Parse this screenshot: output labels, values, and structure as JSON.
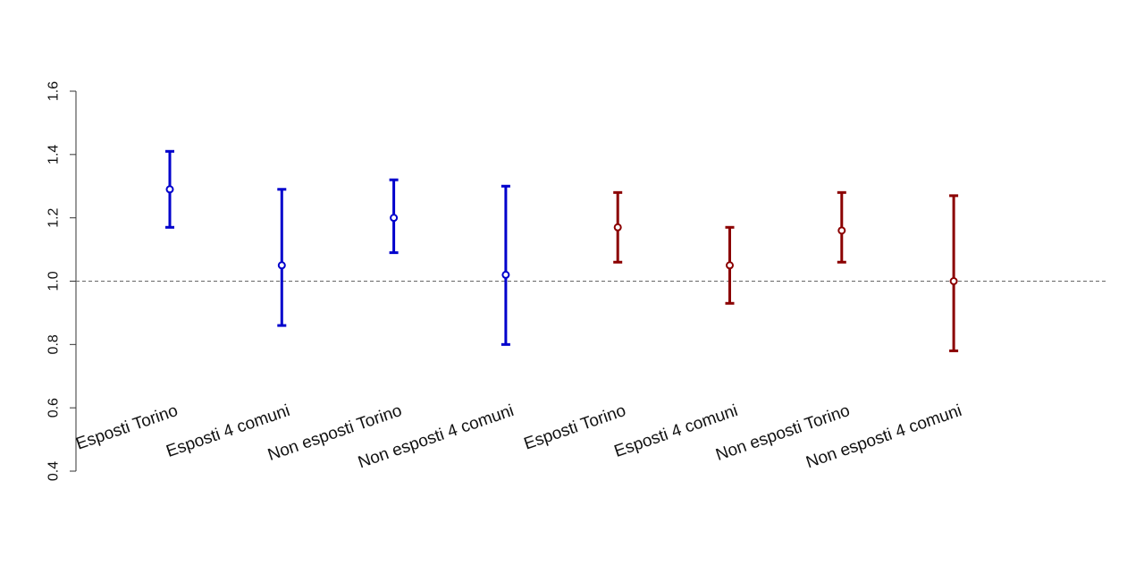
{
  "chart_data": {
    "type": "errorbar",
    "title": "",
    "xlabel": "",
    "ylabel": "",
    "ylim": [
      0.4,
      1.6
    ],
    "yticks": [
      0.4,
      0.6,
      0.8,
      1.0,
      1.2,
      1.4,
      1.6
    ],
    "ytick_labels": [
      "0.4",
      "0.6",
      "0.8",
      "1.0",
      "1.2",
      "1.4",
      "1.6"
    ],
    "reference_line": {
      "y": 1.0,
      "style": "dashed",
      "color": "#666666"
    },
    "grid": false,
    "legend": "none",
    "categories": [
      "Esposti Torino",
      "Esposti 4 comuni",
      "Non esposti Torino",
      "Non esposti 4 comuni",
      "Esposti Torino",
      "Esposti 4 comuni",
      "Non esposti Torino",
      "Non esposti 4 comuni"
    ],
    "points": [
      {
        "estimate": 1.29,
        "lower": 1.17,
        "upper": 1.41,
        "color": "#0000cc"
      },
      {
        "estimate": 1.05,
        "lower": 0.86,
        "upper": 1.29,
        "color": "#0000cc"
      },
      {
        "estimate": 1.2,
        "lower": 1.09,
        "upper": 1.32,
        "color": "#0000cc"
      },
      {
        "estimate": 1.02,
        "lower": 0.8,
        "upper": 1.3,
        "color": "#0000cc"
      },
      {
        "estimate": 1.17,
        "lower": 1.06,
        "upper": 1.28,
        "color": "#8b0000"
      },
      {
        "estimate": 1.05,
        "lower": 0.93,
        "upper": 1.17,
        "color": "#8b0000"
      },
      {
        "estimate": 1.16,
        "lower": 1.06,
        "upper": 1.28,
        "color": "#8b0000"
      },
      {
        "estimate": 1.0,
        "lower": 0.78,
        "upper": 1.27,
        "color": "#8b0000"
      }
    ]
  }
}
